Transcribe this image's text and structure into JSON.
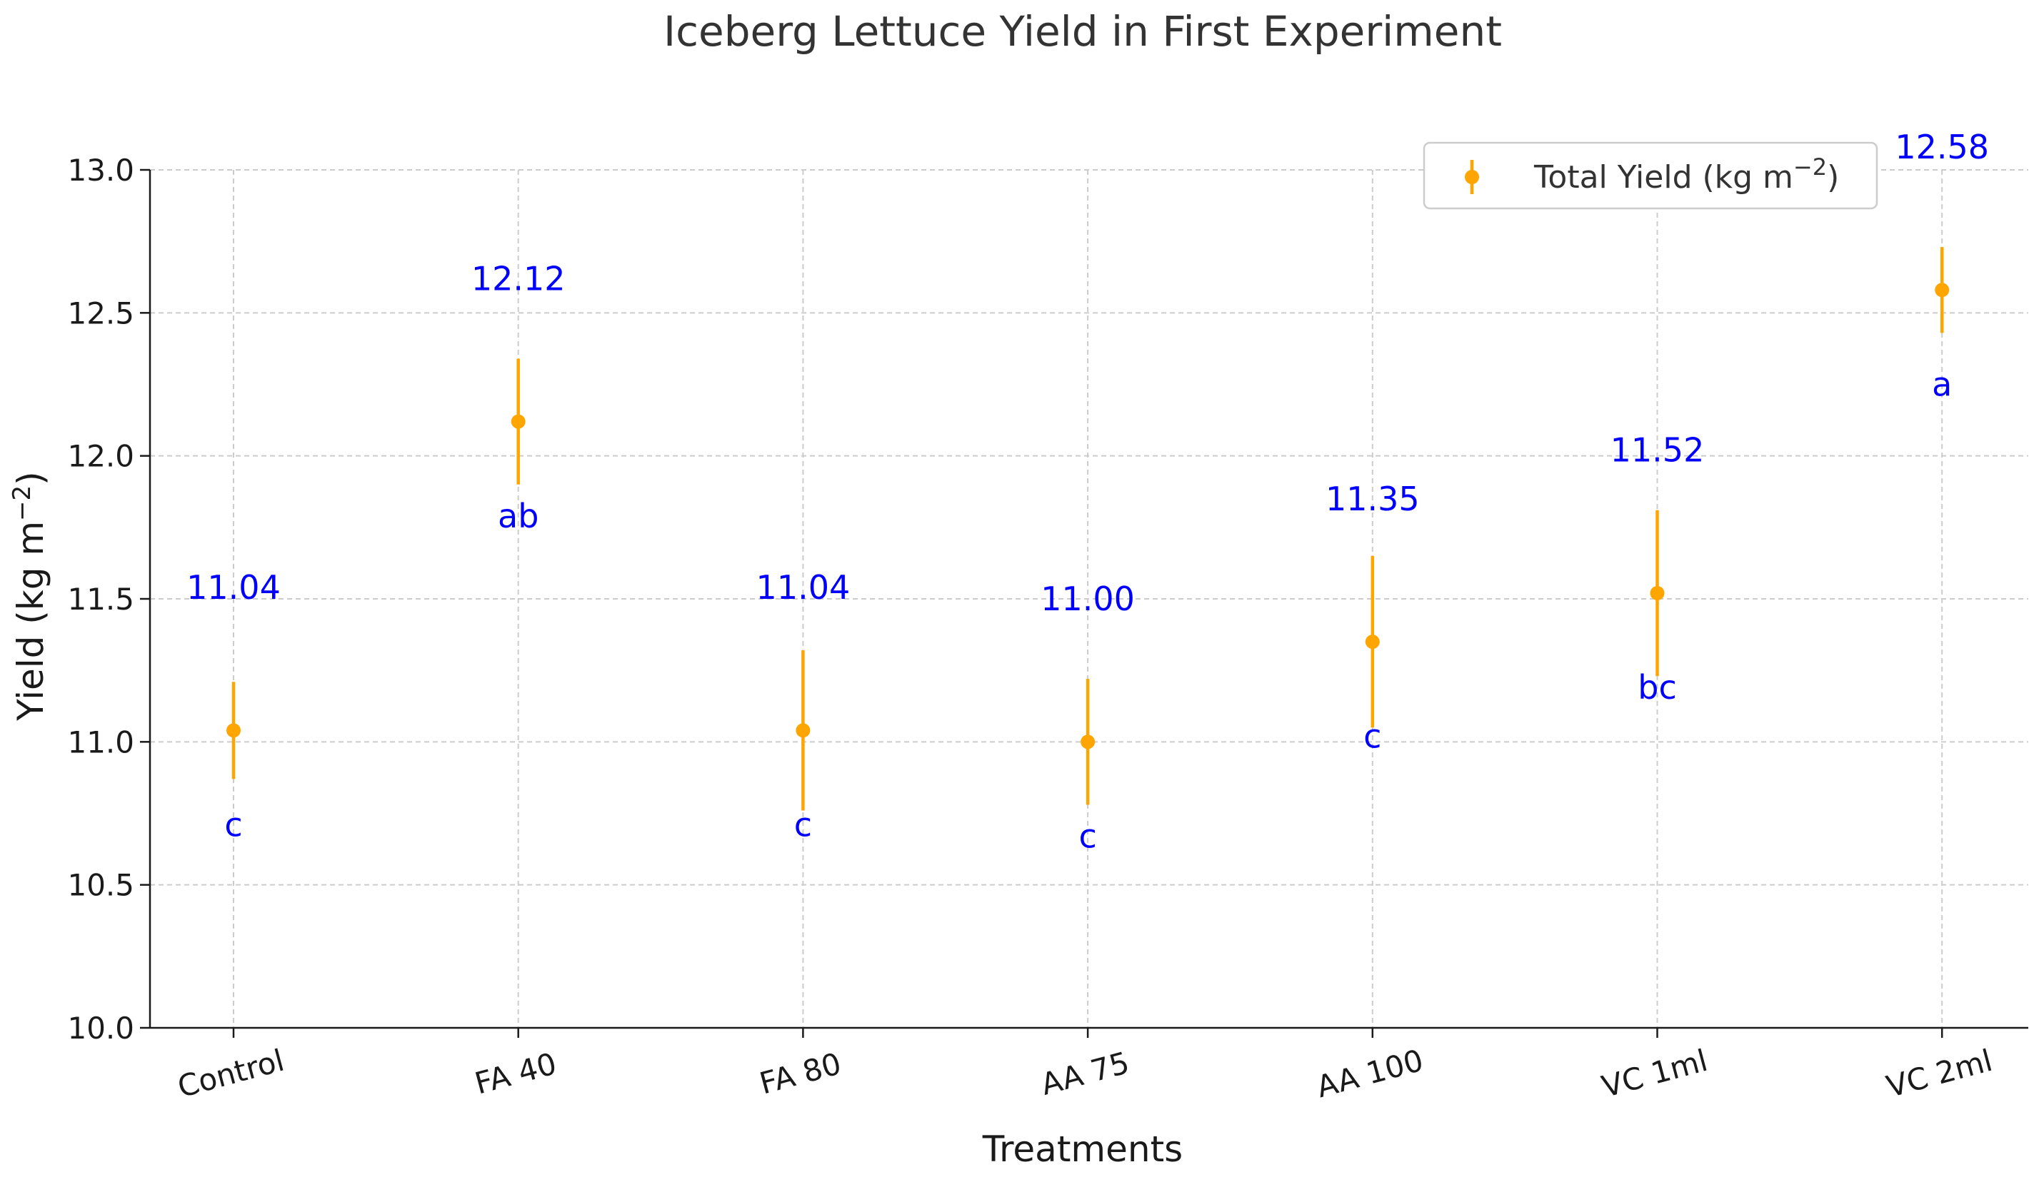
{
  "chart_data": {
    "type": "scatter",
    "title": "Iceberg Lettuce Yield in First Experiment",
    "xlabel": "Treatments",
    "ylabel": "Yield (kg m",
    "ylabel_superscript": "−2",
    "ylabel_suffix": ")",
    "ylim": [
      10.0,
      13.0
    ],
    "yticks": [
      "10.0",
      "10.5",
      "11.0",
      "11.5",
      "12.0",
      "12.5",
      "13.0"
    ],
    "grid": true,
    "legend_position": "top-right",
    "categories": [
      "Control",
      "FA 40",
      "FA 80",
      "AA 75",
      "AA 100",
      "VC 1ml",
      "VC 2ml"
    ],
    "series": [
      {
        "name": "Total Yield (kg m",
        "name_superscript": "−2",
        "name_suffix": ")",
        "values": [
          11.04,
          12.12,
          11.04,
          11.0,
          11.35,
          11.52,
          12.58
        ],
        "errors": [
          0.17,
          0.22,
          0.28,
          0.22,
          0.3,
          0.29,
          0.15
        ]
      }
    ],
    "value_labels": [
      "11.04",
      "12.12",
      "11.04",
      "11.00",
      "11.35",
      "11.52",
      "12.58"
    ],
    "letter_labels": [
      "c",
      "ab",
      "c",
      "c",
      "c",
      "bc",
      "a"
    ],
    "marker_color": "#FFA500",
    "annotation_color": "#0000FF"
  }
}
